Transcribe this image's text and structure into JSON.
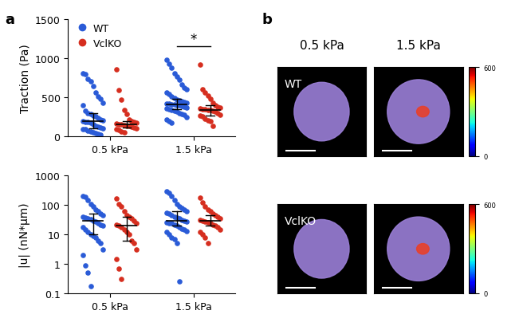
{
  "panel_labels": [
    "a",
    "b"
  ],
  "chart_data": [
    {
      "type": "scatter",
      "ylabel": "Traction (Pa)",
      "categories": [
        "0.5 kPa",
        "1.5 kPa"
      ],
      "ylim": [
        0,
        1500
      ],
      "yticks": [
        0,
        500,
        1000,
        1500
      ],
      "legend": "upper left",
      "series": [
        {
          "name": "WT",
          "color": "#2a5bd7",
          "values": [
            [
              800,
              790,
              730,
              700,
              640,
              560,
              510,
              480,
              430,
              400,
              330,
              300,
              290,
              270,
              260,
              240,
              220,
              210,
              200,
              190,
              180,
              170,
              150,
              130,
              120,
              110,
              100,
              95,
              90,
              70,
              60,
              50,
              40,
              30,
              20
            ],
            [
              980,
              930,
              880,
              800,
              760,
              720,
              660,
              620,
              600,
              560,
              540,
              510,
              490,
              470,
              460,
              450,
              440,
              430,
              420,
              415,
              410,
              405,
              400,
              395,
              390,
              380,
              370,
              360,
              350,
              340,
              330,
              320,
              300,
              290,
              280,
              250,
              220,
              200,
              170
            ]
          ],
          "median": [
            200,
            410
          ],
          "iqr": [
            [
              100,
              300
            ],
            [
              350,
              480
            ]
          ]
        },
        {
          "name": "VclKO",
          "color": "#d62e1f",
          "values": [
            [
              860,
              590,
              470,
              340,
              290,
              220,
              200,
              180,
              170,
              160,
              150,
              150,
              140,
              130,
              130,
              120,
              110,
              100,
              90,
              80,
              60,
              50
            ],
            [
              920,
              600,
              560,
              520,
              480,
              430,
              400,
              380,
              370,
              360,
              350,
              345,
              340,
              335,
              330,
              320,
              300,
              280,
              270,
              260,
              230,
              210,
              200,
              130
            ]
          ],
          "median": [
            150,
            340
          ],
          "iqr": [
            [
              110,
              200
            ],
            [
              270,
              400
            ]
          ]
        }
      ],
      "annotations": [
        {
          "text": "*",
          "category": "1.5 kPa",
          "y": 1150
        }
      ]
    },
    {
      "type": "scatter",
      "ylabel": "|u| (nN*µm)",
      "log": "y",
      "categories": [
        "0.5 kPa",
        "1.5 kPa"
      ],
      "ylim": [
        0.1,
        1000
      ],
      "yticks": [
        0.1,
        1,
        10,
        100,
        1000
      ],
      "series": [
        {
          "name": "WT",
          "color": "#2a5bd7",
          "values": [
            [
              200,
              190,
              150,
              110,
              90,
              70,
              60,
              50,
              45,
              40,
              38,
              35,
              33,
              30,
              28,
              25,
              22,
              20,
              18,
              15,
              12,
              10,
              9,
              8,
              6,
              5,
              3,
              2,
              0.9,
              0.5,
              0.18
            ],
            [
              300,
              260,
              200,
              150,
              110,
              90,
              80,
              70,
              60,
              55,
              50,
              45,
              40,
              38,
              35,
              32,
              30,
              28,
              26,
              25,
              24,
              22,
              20,
              18,
              16,
              15,
              13,
              12,
              10,
              8,
              7,
              5,
              0.25
            ]
          ],
          "median": [
            30,
            30
          ],
          "iqr": [
            [
              10,
              50
            ],
            [
              20,
              60
            ]
          ]
        },
        {
          "name": "VclKO",
          "color": "#d62e1f",
          "values": [
            [
              170,
              110,
              90,
              60,
              45,
              40,
              35,
              30,
              25,
              22,
              20,
              18,
              15,
              12,
              10,
              6,
              5,
              3,
              1.5,
              0.7,
              0.3
            ],
            [
              180,
              120,
              90,
              70,
              60,
              50,
              45,
              40,
              35,
              32,
              30,
              28,
              26,
              25,
              22,
              20,
              18,
              15,
              12,
              10,
              8,
              5
            ]
          ],
          "median": [
            20,
            30
          ],
          "iqr": [
            [
              6,
              40
            ],
            [
              20,
              45
            ]
          ]
        }
      ]
    }
  ],
  "image_panel": {
    "columns": [
      "0.5 kPa",
      "1.5 kPa"
    ],
    "rows": [
      "WT",
      "VclKO"
    ],
    "colorbar": {
      "range": [
        0,
        600
      ],
      "ticks": [
        0,
        600
      ]
    }
  }
}
